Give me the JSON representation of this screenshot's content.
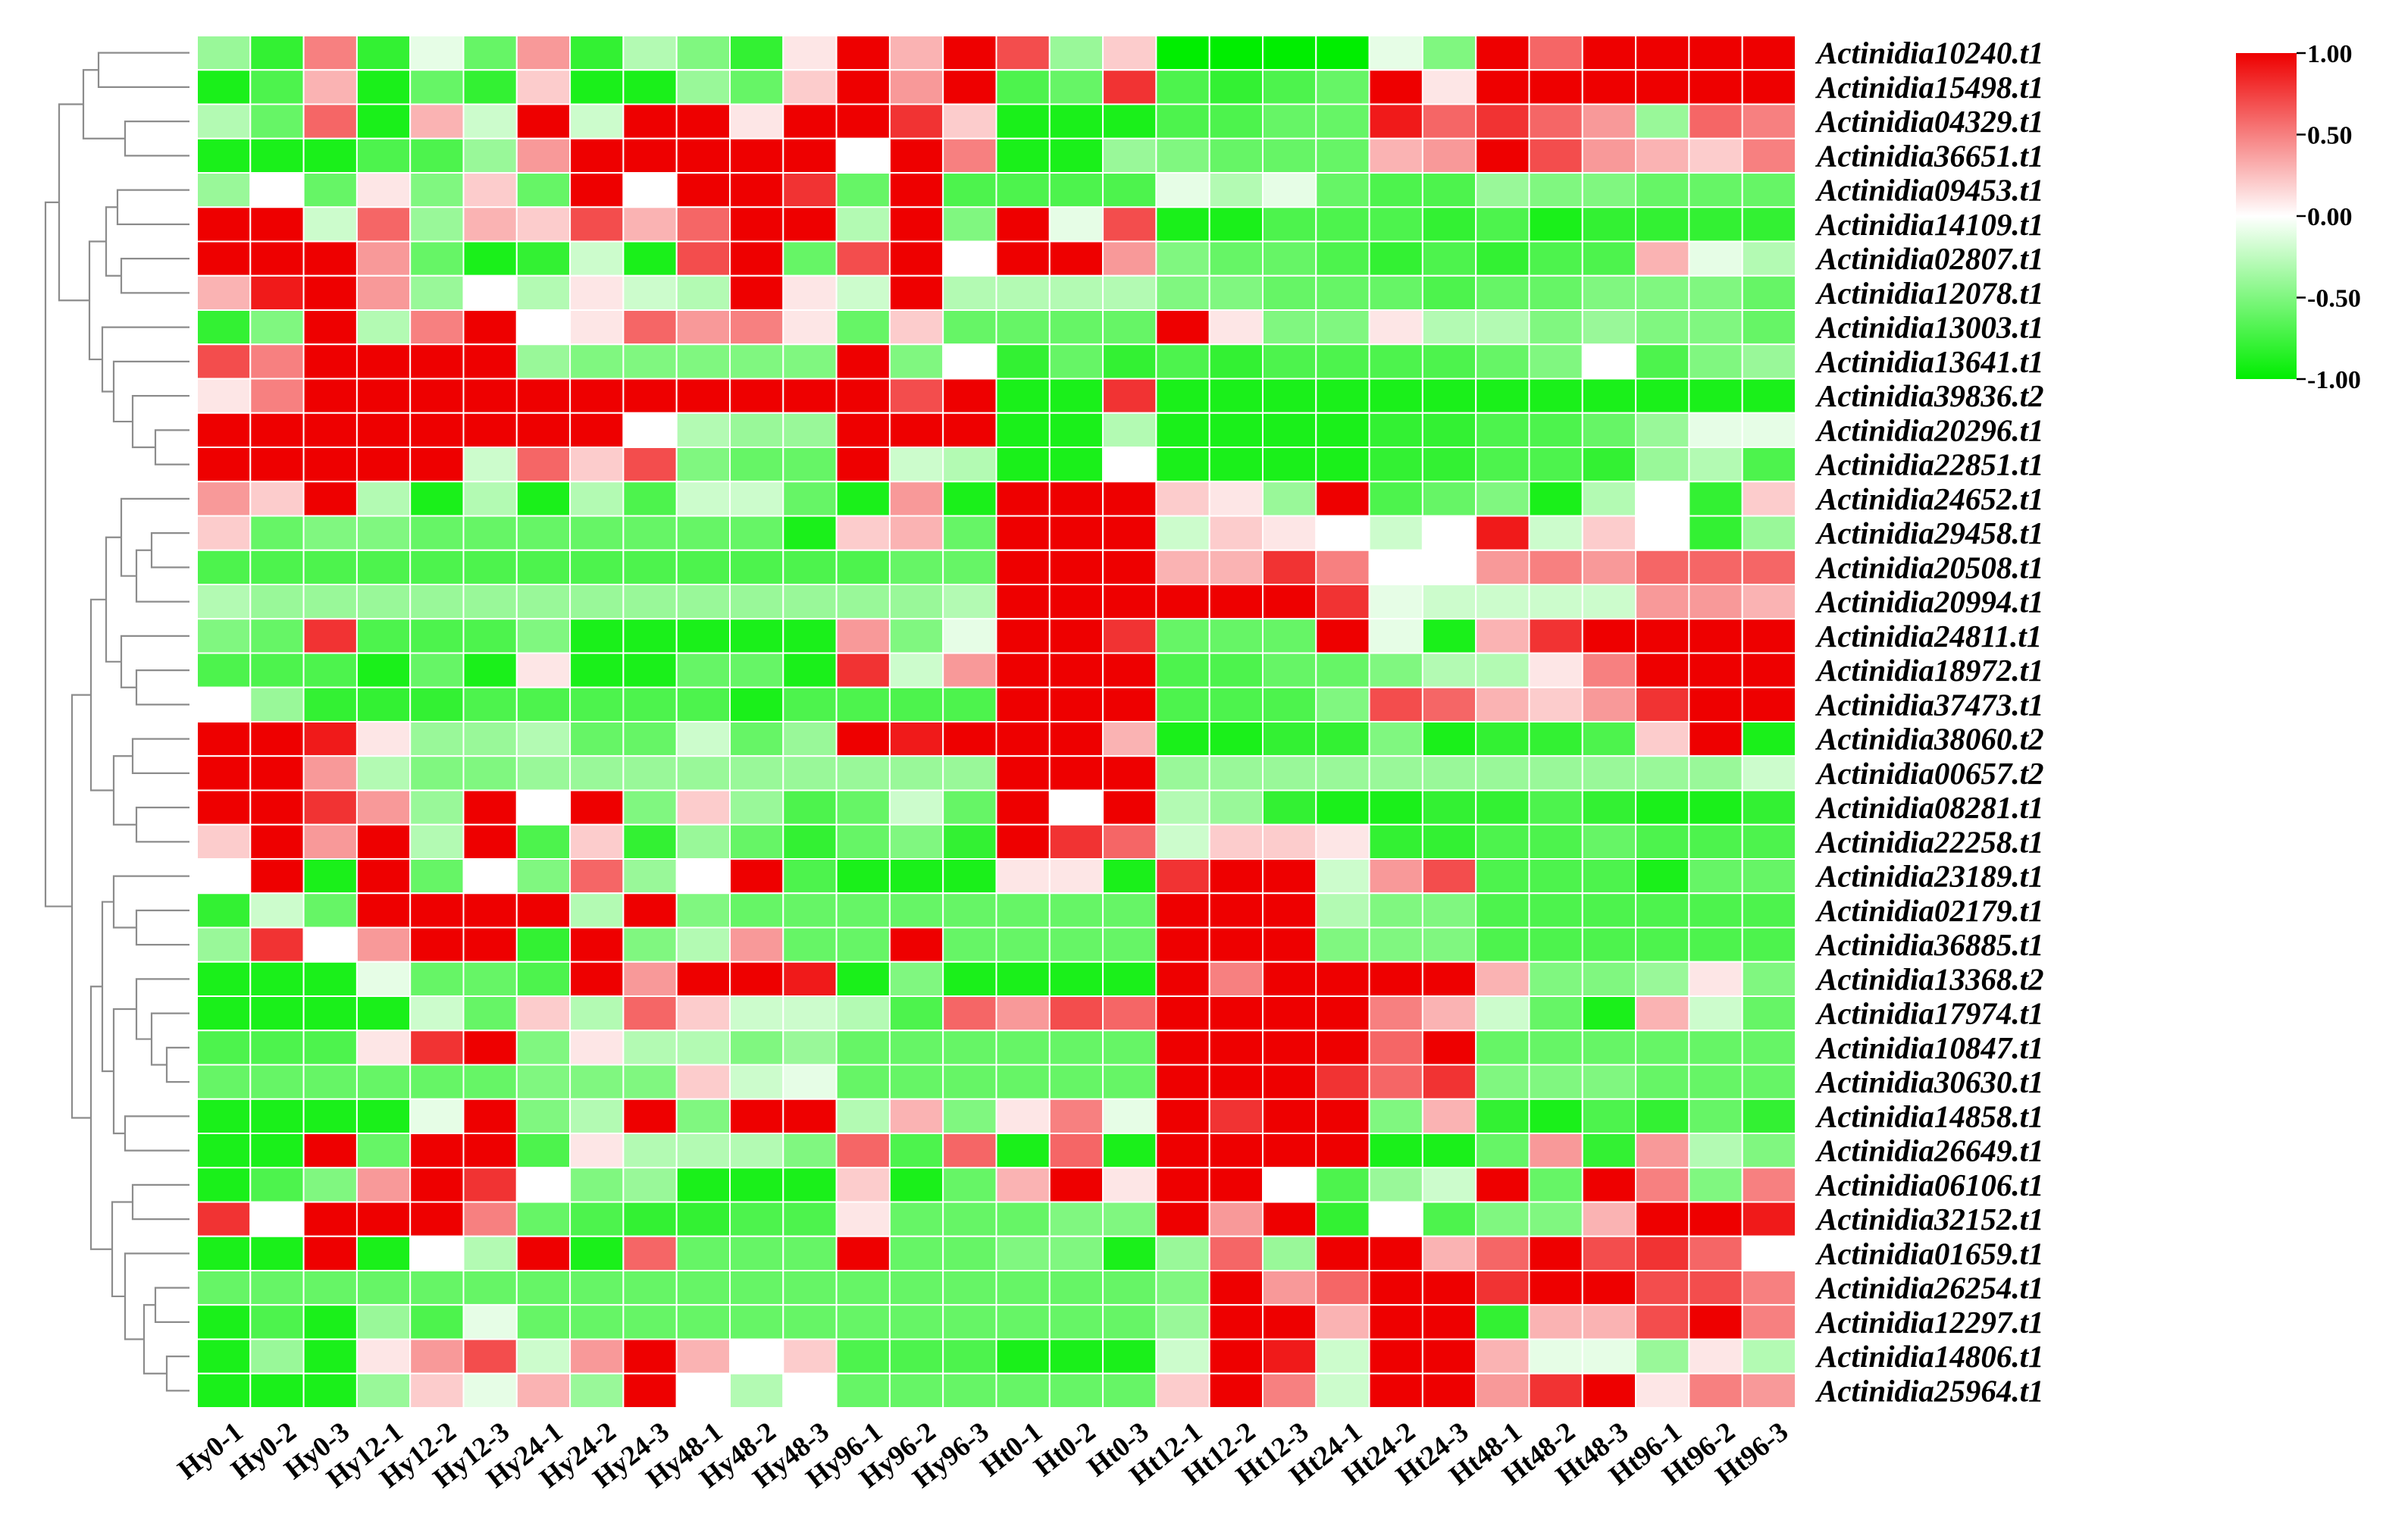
{
  "chart_data": {
    "type": "heatmap",
    "title": "",
    "xlabel": "",
    "ylabel": "",
    "row_dendrogram": true,
    "color_scale": {
      "min": -1.0,
      "mid": 0.0,
      "max": 1.0,
      "colors": {
        "low": "#00ee00",
        "mid": "#ffffff",
        "high": "#ee0000"
      },
      "tick_labels": [
        "1.00",
        "0.50",
        "0.00",
        "-0.50",
        "-1.00"
      ],
      "legend_position": "top-right"
    },
    "columns": [
      "Hy0-1",
      "Hy0-2",
      "Hy0-3",
      "Hy12-1",
      "Hy12-2",
      "Hy12-3",
      "Hy24-1",
      "Hy24-2",
      "Hy24-3",
      "Hy48-1",
      "Hy48-2",
      "Hy48-3",
      "Hy96-1",
      "Hy96-2",
      "Hy96-3",
      "Ht0-1",
      "Ht0-2",
      "Ht0-3",
      "Ht12-1",
      "Ht12-2",
      "Ht12-3",
      "Ht24-1",
      "Ht24-2",
      "Ht24-3",
      "Ht48-1",
      "Ht48-2",
      "Ht48-3",
      "Ht96-1",
      "Ht96-2",
      "Ht96-3"
    ],
    "rows": [
      "Actinidia10240.t1",
      "Actinidia15498.t1",
      "Actinidia04329.t1",
      "Actinidia36651.t1",
      "Actinidia09453.t1",
      "Actinidia14109.t1",
      "Actinidia02807.t1",
      "Actinidia12078.t1",
      "Actinidia13003.t1",
      "Actinidia13641.t1",
      "Actinidia39836.t2",
      "Actinidia20296.t1",
      "Actinidia22851.t1",
      "Actinidia24652.t1",
      "Actinidia29458.t1",
      "Actinidia20508.t1",
      "Actinidia20994.t1",
      "Actinidia24811.t1",
      "Actinidia18972.t1",
      "Actinidia37473.t1",
      "Actinidia38060.t2",
      "Actinidia00657.t2",
      "Actinidia08281.t1",
      "Actinidia22258.t1",
      "Actinidia23189.t1",
      "Actinidia02179.t1",
      "Actinidia36885.t1",
      "Actinidia13368.t2",
      "Actinidia17974.t1",
      "Actinidia10847.t1",
      "Actinidia30630.t1",
      "Actinidia14858.t1",
      "Actinidia26649.t1",
      "Actinidia06106.t1",
      "Actinidia32152.t1",
      "Actinidia01659.t1",
      "Actinidia26254.t1",
      "Actinidia12297.t1",
      "Actinidia14806.t1",
      "Actinidia25964.t1"
    ],
    "values": [
      [
        -0.4,
        -0.8,
        0.5,
        -0.8,
        -0.1,
        -0.6,
        0.4,
        -0.8,
        -0.3,
        -0.5,
        -0.8,
        0.1,
        1,
        0.3,
        1,
        0.7,
        -0.4,
        0.2,
        -1,
        -1,
        -1,
        -1,
        -0.1,
        -0.5,
        1,
        0.6,
        1,
        1,
        1,
        1
      ],
      [
        -0.9,
        -0.7,
        0.3,
        -0.9,
        -0.6,
        -0.8,
        0.2,
        -0.9,
        -0.9,
        -0.4,
        -0.6,
        0.2,
        1,
        0.4,
        1,
        -0.7,
        -0.6,
        0.8,
        -0.7,
        -0.8,
        -0.7,
        -0.6,
        1,
        0.1,
        1,
        1,
        1,
        1,
        1,
        1
      ],
      [
        -0.3,
        -0.6,
        0.6,
        -0.9,
        0.3,
        -0.2,
        1,
        -0.2,
        1,
        1,
        0.1,
        1,
        1,
        0.8,
        0.2,
        -0.9,
        -0.9,
        -0.9,
        -0.7,
        -0.7,
        -0.6,
        -0.6,
        0.9,
        0.6,
        0.8,
        0.6,
        0.4,
        -0.4,
        0.6,
        0.5
      ],
      [
        -0.9,
        -0.9,
        -0.9,
        -0.7,
        -0.7,
        -0.4,
        0.4,
        1,
        1,
        1,
        1,
        1,
        0,
        1,
        0.5,
        -0.9,
        -0.9,
        -0.4,
        -0.5,
        -0.6,
        -0.6,
        -0.6,
        0.3,
        0.4,
        1,
        0.7,
        0.4,
        0.3,
        0.2,
        0.5
      ],
      [
        -0.4,
        0,
        -0.6,
        0.1,
        -0.5,
        0.2,
        -0.6,
        1,
        0,
        1,
        1,
        0.8,
        -0.6,
        1,
        -0.7,
        -0.7,
        -0.7,
        -0.7,
        -0.1,
        -0.3,
        -0.1,
        -0.6,
        -0.7,
        -0.7,
        -0.4,
        -0.5,
        -0.5,
        -0.6,
        -0.6,
        -0.6
      ],
      [
        1,
        1,
        -0.2,
        0.6,
        -0.4,
        0.3,
        0.2,
        0.7,
        0.3,
        0.6,
        1,
        1,
        -0.3,
        1,
        -0.5,
        1,
        -0.1,
        0.7,
        -0.9,
        -0.9,
        -0.7,
        -0.7,
        -0.7,
        -0.8,
        -0.7,
        -0.9,
        -0.8,
        -0.8,
        -0.8,
        -0.8
      ],
      [
        1,
        1,
        1,
        0.4,
        -0.6,
        -0.9,
        -0.8,
        -0.2,
        -0.9,
        0.7,
        1,
        -0.6,
        0.7,
        1,
        0,
        1,
        1,
        0.4,
        -0.5,
        -0.6,
        -0.6,
        -0.7,
        -0.8,
        -0.7,
        -0.8,
        -0.7,
        -0.7,
        0.3,
        -0.1,
        -0.3
      ],
      [
        0.3,
        0.9,
        1,
        0.4,
        -0.4,
        0,
        -0.3,
        0.1,
        -0.2,
        -0.3,
        1,
        0.1,
        -0.2,
        1,
        -0.3,
        -0.3,
        -0.3,
        -0.3,
        -0.5,
        -0.5,
        -0.6,
        -0.6,
        -0.6,
        -0.7,
        -0.6,
        -0.6,
        -0.5,
        -0.5,
        -0.5,
        -0.6
      ],
      [
        -0.8,
        -0.5,
        1,
        -0.3,
        0.5,
        1,
        0,
        0.1,
        0.6,
        0.4,
        0.5,
        0.1,
        -0.6,
        0.2,
        -0.6,
        -0.6,
        -0.6,
        -0.6,
        1,
        0.1,
        -0.5,
        -0.5,
        0.1,
        -0.3,
        -0.3,
        -0.5,
        -0.4,
        -0.5,
        -0.5,
        -0.6
      ],
      [
        0.7,
        0.5,
        1,
        1,
        1,
        1,
        -0.4,
        -0.5,
        -0.5,
        -0.5,
        -0.5,
        -0.5,
        1,
        -0.5,
        0,
        -0.8,
        -0.6,
        -0.8,
        -0.7,
        -0.8,
        -0.7,
        -0.7,
        -0.7,
        -0.7,
        -0.6,
        -0.5,
        0,
        -0.7,
        -0.5,
        -0.4
      ],
      [
        0.1,
        0.5,
        1,
        1,
        1,
        1,
        1,
        1,
        1,
        1,
        1,
        1,
        1,
        0.7,
        1,
        -0.9,
        -0.9,
        0.8,
        -0.9,
        -0.9,
        -0.9,
        -0.9,
        -0.9,
        -0.9,
        -0.9,
        -0.9,
        -0.9,
        -0.9,
        -0.9,
        -0.9
      ],
      [
        1,
        1,
        1,
        1,
        1,
        1,
        1,
        1,
        0,
        -0.3,
        -0.4,
        -0.4,
        1,
        1,
        1,
        -0.9,
        -0.9,
        -0.3,
        -0.9,
        -0.9,
        -0.9,
        -0.9,
        -0.8,
        -0.8,
        -0.7,
        -0.7,
        -0.6,
        -0.4,
        -0.1,
        -0.1
      ],
      [
        1,
        1,
        1,
        1,
        1,
        -0.2,
        0.6,
        0.2,
        0.7,
        -0.5,
        -0.6,
        -0.6,
        1,
        -0.2,
        -0.3,
        -0.9,
        -0.9,
        0,
        -0.9,
        -0.9,
        -0.9,
        -0.9,
        -0.8,
        -0.8,
        -0.7,
        -0.7,
        -0.8,
        -0.4,
        -0.3,
        -0.7
      ],
      [
        0.4,
        0.2,
        1,
        -0.3,
        -0.9,
        -0.3,
        -0.9,
        -0.3,
        -0.7,
        -0.2,
        -0.2,
        -0.6,
        -0.9,
        0.4,
        -0.9,
        1,
        1,
        1,
        0.2,
        0.1,
        -0.4,
        1,
        -0.7,
        -0.6,
        -0.5,
        -0.9,
        -0.3,
        0,
        -0.8,
        0.2
      ],
      [
        0.2,
        -0.6,
        -0.5,
        -0.5,
        -0.6,
        -0.6,
        -0.6,
        -0.6,
        -0.6,
        -0.6,
        -0.6,
        -0.9,
        0.2,
        0.3,
        -0.6,
        1,
        1,
        1,
        -0.2,
        0.2,
        0.1,
        0,
        -0.2,
        0,
        0.9,
        -0.2,
        0.2,
        0,
        -0.8,
        -0.4
      ],
      [
        -0.7,
        -0.7,
        -0.7,
        -0.7,
        -0.7,
        -0.7,
        -0.7,
        -0.7,
        -0.7,
        -0.7,
        -0.7,
        -0.7,
        -0.7,
        -0.6,
        -0.6,
        1,
        1,
        1,
        0.3,
        0.3,
        0.8,
        0.5,
        0,
        0,
        0.4,
        0.5,
        0.4,
        0.6,
        0.6,
        0.6
      ],
      [
        -0.3,
        -0.4,
        -0.4,
        -0.4,
        -0.4,
        -0.4,
        -0.4,
        -0.4,
        -0.4,
        -0.4,
        -0.4,
        -0.4,
        -0.4,
        -0.4,
        -0.3,
        1,
        1,
        1,
        1,
        1,
        1,
        0.8,
        -0.1,
        -0.2,
        -0.2,
        -0.2,
        -0.2,
        0.4,
        0.4,
        0.3
      ],
      [
        -0.5,
        -0.6,
        0.8,
        -0.7,
        -0.7,
        -0.7,
        -0.5,
        -0.9,
        -0.9,
        -0.9,
        -0.9,
        -0.9,
        0.4,
        -0.5,
        -0.1,
        1,
        1,
        0.8,
        -0.6,
        -0.6,
        -0.6,
        1,
        -0.1,
        -0.9,
        0.3,
        0.8,
        1,
        1,
        1,
        1
      ],
      [
        -0.7,
        -0.7,
        -0.7,
        -0.9,
        -0.6,
        -0.9,
        0.1,
        -0.9,
        -0.9,
        -0.6,
        -0.6,
        -0.9,
        0.8,
        -0.2,
        0.4,
        1,
        1,
        1,
        -0.7,
        -0.7,
        -0.6,
        -0.6,
        -0.5,
        -0.3,
        -0.3,
        0.1,
        0.5,
        1,
        1,
        1
      ],
      [
        0,
        -0.4,
        -0.8,
        -0.8,
        -0.8,
        -0.7,
        -0.7,
        -0.7,
        -0.7,
        -0.7,
        -0.9,
        -0.7,
        -0.7,
        -0.7,
        -0.7,
        1,
        1,
        1,
        -0.7,
        -0.7,
        -0.7,
        -0.5,
        0.7,
        0.6,
        0.3,
        0.2,
        0.4,
        0.8,
        1,
        1
      ],
      [
        1,
        1,
        0.9,
        0.1,
        -0.4,
        -0.4,
        -0.3,
        -0.6,
        -0.6,
        -0.2,
        -0.6,
        -0.4,
        1,
        0.9,
        1,
        1,
        1,
        0.3,
        -0.9,
        -0.9,
        -0.8,
        -0.8,
        -0.5,
        -0.9,
        -0.8,
        -0.8,
        -0.7,
        0.2,
        1,
        -0.9
      ],
      [
        1,
        1,
        0.4,
        -0.3,
        -0.5,
        -0.5,
        -0.4,
        -0.4,
        -0.4,
        -0.4,
        -0.4,
        -0.4,
        -0.4,
        -0.4,
        -0.4,
        1,
        1,
        1,
        -0.4,
        -0.4,
        -0.4,
        -0.4,
        -0.4,
        -0.4,
        -0.4,
        -0.4,
        -0.4,
        -0.4,
        -0.4,
        -0.2
      ],
      [
        1,
        1,
        0.8,
        0.4,
        -0.4,
        1,
        0,
        1,
        -0.5,
        0.2,
        -0.4,
        -0.7,
        -0.6,
        -0.2,
        -0.6,
        1,
        0,
        1,
        -0.3,
        -0.4,
        -0.8,
        -0.9,
        -0.9,
        -0.8,
        -0.8,
        -0.7,
        -0.8,
        -0.9,
        -0.9,
        -0.8
      ],
      [
        0.2,
        1,
        0.4,
        1,
        -0.3,
        1,
        -0.7,
        0.2,
        -0.8,
        -0.4,
        -0.6,
        -0.8,
        -0.6,
        -0.5,
        -0.8,
        1,
        0.8,
        0.6,
        -0.2,
        0.2,
        0.2,
        0.1,
        -0.8,
        -0.8,
        -0.7,
        -0.7,
        -0.6,
        -0.7,
        -0.7,
        -0.7
      ],
      [
        0,
        1,
        -0.9,
        1,
        -0.6,
        0,
        -0.5,
        0.6,
        -0.4,
        0,
        1,
        -0.7,
        -0.9,
        -0.9,
        -0.9,
        0.1,
        0.1,
        -0.9,
        0.8,
        1,
        1,
        -0.2,
        0.4,
        0.7,
        -0.7,
        -0.7,
        -0.7,
        -0.9,
        -0.6,
        -0.6
      ],
      [
        -0.8,
        -0.2,
        -0.6,
        1,
        1,
        1,
        1,
        -0.3,
        1,
        -0.5,
        -0.6,
        -0.6,
        -0.6,
        -0.6,
        -0.6,
        -0.6,
        -0.6,
        -0.6,
        1,
        1,
        1,
        -0.3,
        -0.5,
        -0.5,
        -0.7,
        -0.7,
        -0.7,
        -0.7,
        -0.7,
        -0.7
      ],
      [
        -0.4,
        0.8,
        0,
        0.4,
        1,
        1,
        -0.8,
        1,
        -0.5,
        -0.3,
        0.4,
        -0.6,
        -0.6,
        1,
        -0.6,
        -0.6,
        -0.6,
        -0.6,
        1,
        1,
        1,
        -0.5,
        -0.5,
        -0.5,
        -0.7,
        -0.7,
        -0.7,
        -0.7,
        -0.7,
        -0.7
      ],
      [
        -0.9,
        -0.9,
        -0.9,
        -0.1,
        -0.6,
        -0.6,
        -0.7,
        1,
        0.4,
        1,
        1,
        0.9,
        -0.9,
        -0.5,
        -0.9,
        -0.9,
        -0.9,
        -0.9,
        1,
        0.5,
        1,
        1,
        1,
        1,
        0.3,
        -0.5,
        -0.5,
        -0.4,
        0.1,
        -0.5
      ],
      [
        -0.9,
        -0.9,
        -0.9,
        -0.9,
        -0.2,
        -0.6,
        0.2,
        -0.3,
        0.6,
        0.2,
        -0.2,
        -0.2,
        -0.3,
        -0.7,
        0.6,
        0.4,
        0.7,
        0.6,
        1,
        1,
        1,
        1,
        0.5,
        0.3,
        -0.2,
        -0.6,
        -0.9,
        0.3,
        -0.2,
        -0.6
      ],
      [
        -0.7,
        -0.7,
        -0.7,
        0.1,
        0.8,
        1,
        -0.5,
        0.1,
        -0.3,
        -0.3,
        -0.5,
        -0.4,
        -0.6,
        -0.6,
        -0.6,
        -0.6,
        -0.6,
        -0.6,
        1,
        1,
        1,
        1,
        0.6,
        1,
        -0.6,
        -0.6,
        -0.6,
        -0.6,
        -0.6,
        -0.6
      ],
      [
        -0.6,
        -0.6,
        -0.6,
        -0.6,
        -0.6,
        -0.6,
        -0.5,
        -0.5,
        -0.5,
        0.2,
        -0.2,
        -0.1,
        -0.6,
        -0.6,
        -0.6,
        -0.6,
        -0.6,
        -0.6,
        1,
        1,
        1,
        0.8,
        0.6,
        0.8,
        -0.5,
        -0.5,
        -0.5,
        -0.6,
        -0.6,
        -0.6
      ],
      [
        -0.9,
        -0.9,
        -0.9,
        -0.9,
        -0.1,
        1,
        -0.5,
        -0.3,
        1,
        -0.5,
        1,
        1,
        -0.3,
        0.3,
        -0.5,
        0.1,
        0.5,
        -0.1,
        1,
        0.8,
        1,
        1,
        -0.5,
        0.3,
        -0.8,
        -0.9,
        -0.7,
        -0.8,
        -0.6,
        -0.8
      ],
      [
        -0.9,
        -0.9,
        1,
        -0.6,
        1,
        1,
        -0.7,
        0.1,
        -0.3,
        -0.3,
        -0.3,
        -0.5,
        0.6,
        -0.7,
        0.6,
        -0.9,
        0.6,
        -0.9,
        1,
        1,
        1,
        1,
        -0.9,
        -0.9,
        -0.6,
        0.4,
        -0.8,
        0.4,
        -0.3,
        -0.5
      ],
      [
        -0.9,
        -0.7,
        -0.5,
        0.4,
        1,
        0.8,
        0,
        -0.5,
        -0.4,
        -0.9,
        -0.9,
        -0.9,
        0.2,
        -0.9,
        -0.6,
        0.3,
        1,
        0.1,
        1,
        1,
        0,
        -0.7,
        -0.4,
        -0.2,
        1,
        -0.6,
        1,
        0.5,
        -0.5,
        0.5
      ],
      [
        0.8,
        0,
        1,
        1,
        1,
        0.5,
        -0.6,
        -0.7,
        -0.8,
        -0.8,
        -0.7,
        -0.7,
        0.1,
        -0.6,
        -0.6,
        -0.6,
        -0.5,
        -0.5,
        1,
        0.4,
        1,
        -0.8,
        0,
        -0.7,
        -0.5,
        -0.5,
        0.3,
        1,
        1,
        0.9
      ],
      [
        -0.9,
        -0.9,
        1,
        -0.9,
        0,
        -0.3,
        1,
        -0.9,
        0.6,
        -0.6,
        -0.6,
        -0.6,
        1,
        -0.6,
        -0.6,
        -0.5,
        -0.5,
        -0.9,
        -0.4,
        0.6,
        -0.4,
        1,
        1,
        0.3,
        0.6,
        1,
        0.7,
        0.8,
        0.6,
        0
      ],
      [
        -0.6,
        -0.6,
        -0.6,
        -0.6,
        -0.6,
        -0.6,
        -0.6,
        -0.6,
        -0.6,
        -0.6,
        -0.6,
        -0.6,
        -0.6,
        -0.6,
        -0.6,
        -0.6,
        -0.6,
        -0.6,
        -0.5,
        1,
        0.4,
        0.6,
        1,
        1,
        0.8,
        1,
        1,
        0.7,
        0.7,
        0.5
      ],
      [
        -0.9,
        -0.7,
        -0.9,
        -0.4,
        -0.7,
        -0.1,
        -0.6,
        -0.6,
        -0.6,
        -0.6,
        -0.6,
        -0.6,
        -0.6,
        -0.6,
        -0.6,
        -0.6,
        -0.6,
        -0.6,
        -0.4,
        1,
        1,
        0.3,
        1,
        1,
        -0.8,
        0.3,
        0.3,
        0.7,
        1,
        0.5
      ],
      [
        -0.9,
        -0.4,
        -0.9,
        0.1,
        0.4,
        0.7,
        -0.2,
        0.4,
        1,
        0.3,
        0,
        0.2,
        -0.7,
        -0.7,
        -0.7,
        -0.9,
        -0.9,
        -0.9,
        -0.2,
        1,
        0.9,
        -0.2,
        1,
        1,
        0.3,
        -0.1,
        -0.1,
        -0.4,
        0.1,
        -0.3
      ],
      [
        -0.9,
        -0.9,
        -0.9,
        -0.4,
        0.2,
        -0.1,
        0.3,
        -0.4,
        1,
        0,
        -0.3,
        0,
        -0.6,
        -0.6,
        -0.6,
        -0.6,
        -0.6,
        -0.6,
        0.2,
        1,
        0.5,
        -0.2,
        1,
        1,
        0.4,
        0.8,
        1,
        0.1,
        0.5,
        0.4
      ]
    ]
  }
}
